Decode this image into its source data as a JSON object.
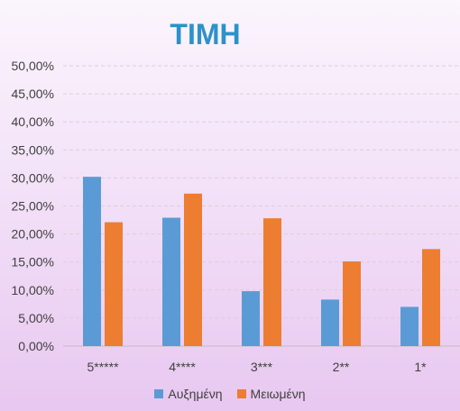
{
  "chart_data": {
    "type": "bar",
    "title": "ΤΙΜΗ",
    "title_color": "#2b92c9",
    "categories": [
      "5*****",
      "4****",
      "3***",
      "2**",
      "1*"
    ],
    "series": [
      {
        "name": "Αυξημένη",
        "color": "#5b9bd5",
        "values": [
          30.2,
          22.9,
          9.8,
          8.3,
          7.0
        ]
      },
      {
        "name": "Μειωμένη",
        "color": "#ed7d31",
        "values": [
          22.1,
          27.2,
          22.8,
          15.1,
          17.3
        ]
      }
    ],
    "ylim": [
      0,
      50
    ],
    "ytick_labels": [
      "0,00%",
      "5,00%",
      "10,00%",
      "15,00%",
      "20,00%",
      "25,00%",
      "30,00%",
      "35,00%",
      "40,00%",
      "45,00%",
      "50,00%"
    ],
    "xlabel": "",
    "ylabel": "",
    "grid": true,
    "legend_position": "bottom"
  }
}
